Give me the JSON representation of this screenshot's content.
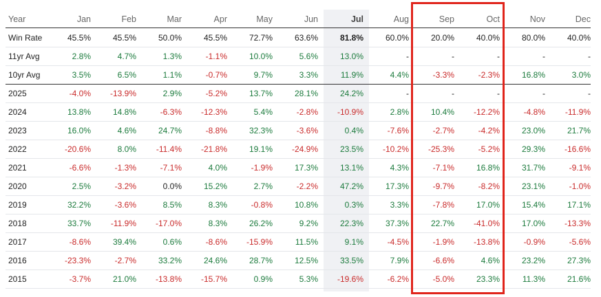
{
  "table": {
    "headers": [
      "Year",
      "Jan",
      "Feb",
      "Mar",
      "Apr",
      "May",
      "Jun",
      "Jul",
      "Aug",
      "Sep",
      "Oct",
      "Nov",
      "Dec"
    ],
    "win_rate": {
      "label": "Win Rate",
      "values": [
        "45.5%",
        "45.5%",
        "50.0%",
        "45.5%",
        "72.7%",
        "63.6%",
        "81.8%",
        "60.0%",
        "20.0%",
        "40.0%",
        "80.0%",
        "40.0%"
      ]
    },
    "rows": [
      {
        "label": "11yr Avg",
        "values": [
          "2.8%",
          "4.7%",
          "1.3%",
          "-1.1%",
          "10.0%",
          "5.6%",
          "13.0%",
          "-",
          "-",
          "-",
          "-",
          "-"
        ]
      },
      {
        "label": "10yr Avg",
        "values": [
          "3.5%",
          "6.5%",
          "1.1%",
          "-0.7%",
          "9.7%",
          "3.3%",
          "11.9%",
          "4.4%",
          "-3.3%",
          "-2.3%",
          "16.8%",
          "3.0%"
        ]
      },
      {
        "label": "2025",
        "values": [
          "-4.0%",
          "-13.9%",
          "2.9%",
          "-5.2%",
          "13.7%",
          "28.1%",
          "24.2%",
          "-",
          "-",
          "-",
          "-",
          "-"
        ]
      },
      {
        "label": "2024",
        "values": [
          "13.8%",
          "14.8%",
          "-6.3%",
          "-12.3%",
          "5.4%",
          "-2.8%",
          "-10.9%",
          "2.8%",
          "10.4%",
          "-12.2%",
          "-4.8%",
          "-11.9%"
        ]
      },
      {
        "label": "2023",
        "values": [
          "16.0%",
          "4.6%",
          "24.7%",
          "-8.8%",
          "32.3%",
          "-3.6%",
          "0.4%",
          "-7.6%",
          "-2.7%",
          "-4.2%",
          "23.0%",
          "21.7%"
        ]
      },
      {
        "label": "2022",
        "values": [
          "-20.6%",
          "8.0%",
          "-11.4%",
          "-21.8%",
          "19.1%",
          "-24.9%",
          "23.5%",
          "-10.2%",
          "-25.3%",
          "-5.2%",
          "29.3%",
          "-16.6%"
        ]
      },
      {
        "label": "2021",
        "values": [
          "-6.6%",
          "-1.3%",
          "-7.1%",
          "4.0%",
          "-1.9%",
          "17.3%",
          "13.1%",
          "4.3%",
          "-7.1%",
          "16.8%",
          "31.7%",
          "-9.1%"
        ]
      },
      {
        "label": "2020",
        "values": [
          "2.5%",
          "-3.2%",
          "0.0%",
          "15.2%",
          "2.7%",
          "-2.2%",
          "47.2%",
          "17.3%",
          "-9.7%",
          "-8.2%",
          "23.1%",
          "-1.0%"
        ]
      },
      {
        "label": "2019",
        "values": [
          "32.2%",
          "-3.6%",
          "8.5%",
          "8.3%",
          "-0.8%",
          "10.8%",
          "0.3%",
          "3.3%",
          "-7.8%",
          "17.0%",
          "15.4%",
          "17.1%"
        ]
      },
      {
        "label": "2018",
        "values": [
          "33.7%",
          "-11.9%",
          "-17.0%",
          "8.3%",
          "26.2%",
          "9.2%",
          "22.3%",
          "37.3%",
          "22.7%",
          "-41.0%",
          "17.0%",
          "-13.3%"
        ]
      },
      {
        "label": "2017",
        "values": [
          "-8.6%",
          "39.4%",
          "0.6%",
          "-8.6%",
          "-15.9%",
          "11.5%",
          "9.1%",
          "-4.5%",
          "-1.9%",
          "-13.8%",
          "-0.9%",
          "-5.6%"
        ]
      },
      {
        "label": "2016",
        "values": [
          "-23.3%",
          "-2.7%",
          "33.2%",
          "24.6%",
          "28.7%",
          "12.5%",
          "33.5%",
          "7.9%",
          "-6.6%",
          "4.6%",
          "23.2%",
          "27.3%"
        ]
      },
      {
        "label": "2015",
        "values": [
          "-3.7%",
          "21.0%",
          "-13.8%",
          "-15.7%",
          "0.9%",
          "5.3%",
          "-19.6%",
          "-6.2%",
          "-5.0%",
          "23.3%",
          "11.3%",
          "21.6%"
        ]
      }
    ],
    "colors": {
      "positive": "#1b7a3c",
      "negative": "#c92a2a",
      "highlight_border": "#e0241b",
      "current_month_bg": "#f0f1f4"
    }
  }
}
